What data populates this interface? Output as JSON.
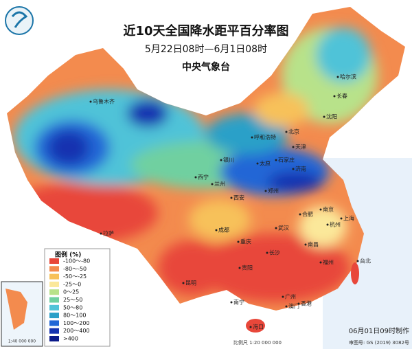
{
  "header": {
    "title": "近10天全国降水距平百分率图",
    "subtitle": "5月22日08时—6月1日08时",
    "agency": "中央气象台"
  },
  "legend": {
    "title": "图例 (%)",
    "items": [
      {
        "label": "-100～-80",
        "color": "#e8473a"
      },
      {
        "label": "-80～-50",
        "color": "#f38b4e"
      },
      {
        "label": "-50～-25",
        "color": "#f7c15a"
      },
      {
        "label": "-25～0",
        "color": "#fbe89a"
      },
      {
        "label": "0～25",
        "color": "#b8e28a"
      },
      {
        "label": "25～50",
        "color": "#6fd0a0"
      },
      {
        "label": "50～80",
        "color": "#4fc3d8"
      },
      {
        "label": "80～100",
        "color": "#2aa0c8"
      },
      {
        "label": "100～200",
        "color": "#2166d6"
      },
      {
        "label": "200～400",
        "color": "#1533b0"
      },
      {
        "label": ">400",
        "color": "#0b1a8a"
      }
    ]
  },
  "cities": [
    "乌鲁木齐",
    "哈尔滨",
    "长春",
    "沈阳",
    "北京",
    "天津",
    "呼和浩特",
    "银川",
    "太原",
    "石家庄",
    "济南",
    "西宁",
    "兰州",
    "郑州",
    "西安",
    "合肥",
    "南京",
    "上海",
    "杭州",
    "武汉",
    "成都",
    "重庆",
    "拉萨",
    "南昌",
    "长沙",
    "贵阳",
    "福州",
    "台北",
    "昆明",
    "南宁",
    "广州",
    "澳门",
    "香港",
    "海口"
  ],
  "footer": {
    "made": "06月01日09时制作",
    "scale": "比例尺 1:20 000 000",
    "approval": "审图号: GS (2019) 3082号",
    "inset_scale": "1:40 000 000"
  }
}
